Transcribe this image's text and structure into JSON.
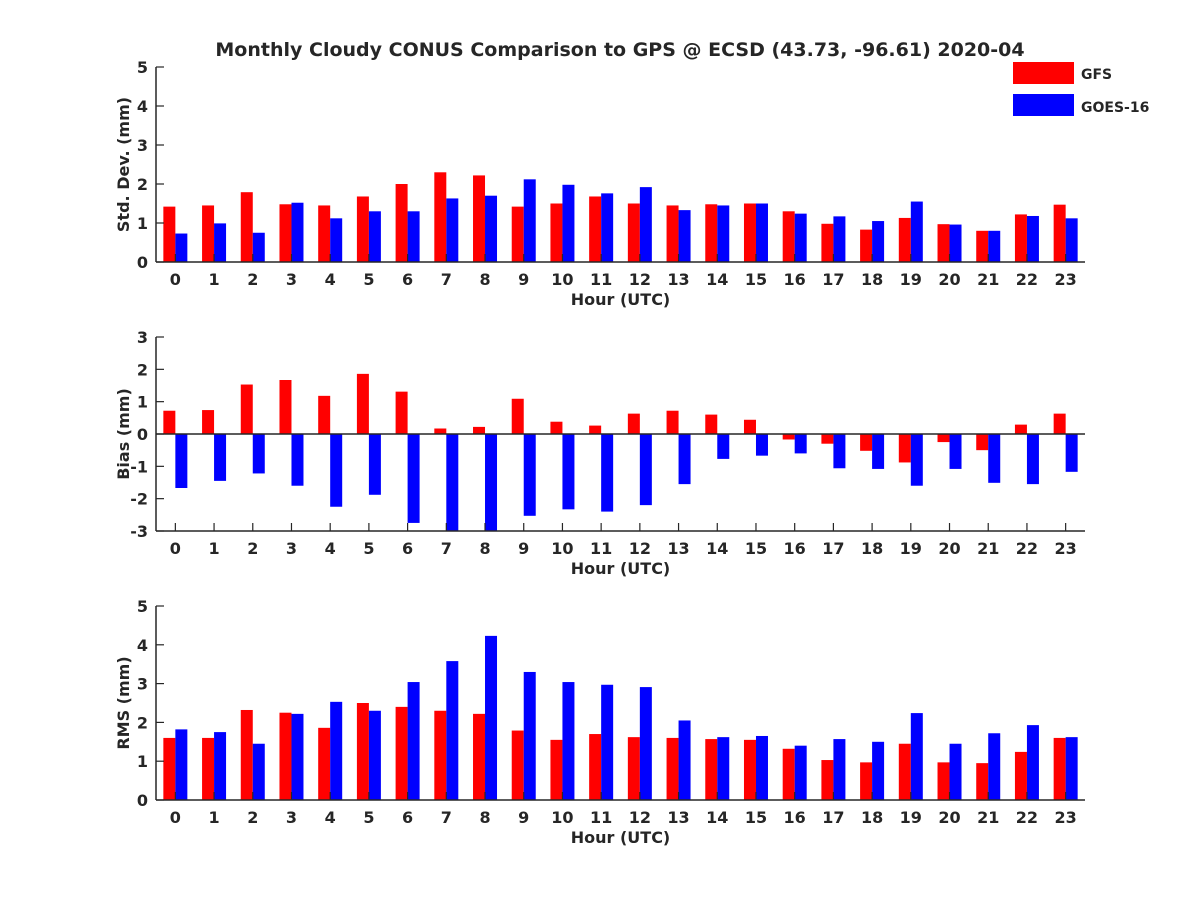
{
  "chart_data": {
    "type": "bar",
    "title": "Monthly Cloudy CONUS Comparison to GPS @ ECSD (43.73, -96.61) 2020-04",
    "legend": {
      "placement": "top-right",
      "entries": [
        {
          "name": "GFS",
          "color": "#ff0000"
        },
        {
          "name": "GOES-16",
          "color": "#0000ff"
        }
      ]
    },
    "categories": [
      "0",
      "1",
      "2",
      "3",
      "4",
      "5",
      "6",
      "7",
      "8",
      "9",
      "10",
      "11",
      "12",
      "13",
      "14",
      "15",
      "16",
      "17",
      "18",
      "19",
      "20",
      "21",
      "22",
      "23"
    ],
    "panels": [
      {
        "ylabel": "Std. Dev. (mm)",
        "xlabel": "Hour (UTC)",
        "ylim": [
          0,
          5
        ],
        "yticks": [
          "0",
          "1",
          "2",
          "3",
          "4",
          "5"
        ],
        "series": [
          {
            "name": "GFS",
            "values": [
              1.42,
              1.45,
              1.79,
              1.48,
              1.45,
              1.68,
              2.0,
              2.3,
              2.22,
              1.42,
              1.5,
              1.68,
              1.5,
              1.45,
              1.48,
              1.5,
              1.3,
              0.98,
              0.83,
              1.13,
              0.97,
              0.8,
              1.22,
              1.47
            ]
          },
          {
            "name": "GOES-16",
            "values": [
              0.73,
              0.99,
              0.75,
              1.52,
              1.12,
              1.3,
              1.3,
              1.63,
              1.7,
              2.12,
              1.98,
              1.76,
              1.92,
              1.33,
              1.45,
              1.5,
              1.24,
              1.17,
              1.05,
              1.55,
              0.96,
              0.8,
              1.18,
              1.12
            ]
          }
        ]
      },
      {
        "ylabel": "Bias (mm)",
        "xlabel": "Hour (UTC)",
        "ylim": [
          -3,
          3
        ],
        "yticks": [
          "-3",
          "-2",
          "-1",
          "0",
          "1",
          "2",
          "3"
        ],
        "series": [
          {
            "name": "GFS",
            "values": [
              0.72,
              0.74,
              1.53,
              1.67,
              1.18,
              1.86,
              1.31,
              0.17,
              0.22,
              1.09,
              0.38,
              0.26,
              0.63,
              0.72,
              0.6,
              0.44,
              -0.17,
              -0.3,
              -0.52,
              -0.88,
              -0.25,
              -0.5,
              0.29,
              0.63
            ]
          },
          {
            "name": "GOES-16",
            "values": [
              -1.67,
              -1.45,
              -1.22,
              -1.6,
              -2.25,
              -1.88,
              -2.75,
              -3.05,
              -3.05,
              -2.53,
              -2.33,
              -2.4,
              -2.2,
              -1.55,
              -0.77,
              -0.67,
              -0.6,
              -1.06,
              -1.08,
              -1.6,
              -1.08,
              -1.51,
              -1.55,
              -1.17
            ]
          }
        ]
      },
      {
        "ylabel": "RMS (mm)",
        "xlabel": "Hour (UTC)",
        "ylim": [
          0,
          5
        ],
        "yticks": [
          "0",
          "1",
          "2",
          "3",
          "4",
          "5"
        ],
        "series": [
          {
            "name": "GFS",
            "values": [
              1.6,
              1.6,
              2.32,
              2.25,
              1.86,
              2.5,
              2.4,
              2.3,
              2.22,
              1.79,
              1.55,
              1.7,
              1.62,
              1.6,
              1.57,
              1.55,
              1.32,
              1.03,
              0.97,
              1.45,
              0.97,
              0.95,
              1.24,
              1.6
            ]
          },
          {
            "name": "GOES-16",
            "values": [
              1.82,
              1.75,
              1.45,
              2.22,
              2.53,
              2.3,
              3.04,
              3.58,
              4.23,
              3.3,
              3.04,
              2.97,
              2.91,
              2.05,
              1.62,
              1.65,
              1.4,
              1.57,
              1.5,
              2.24,
              1.45,
              1.72,
              1.93,
              1.62
            ]
          }
        ]
      }
    ]
  }
}
